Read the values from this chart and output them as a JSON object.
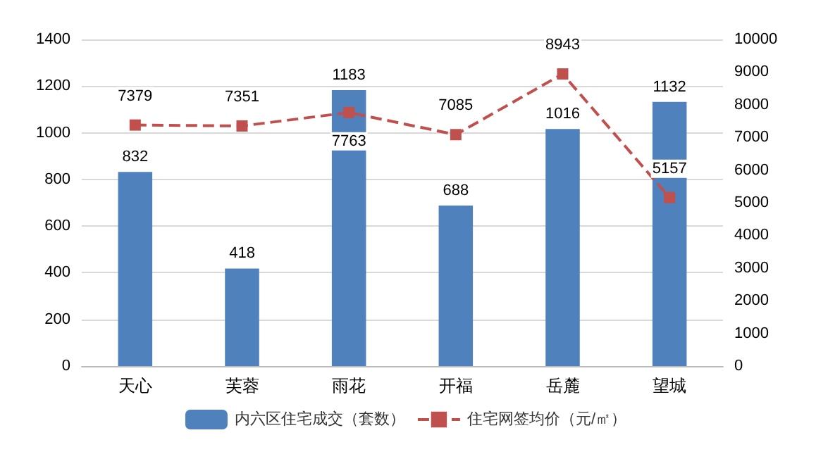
{
  "chart_data": {
    "type": "bar",
    "categories": [
      "天心",
      "芙蓉",
      "雨花",
      "开福",
      "岳麓",
      "望城"
    ],
    "series": [
      {
        "name": "内六区住宅成交（套数）",
        "color": "#4f81bd",
        "values": [
          832,
          418,
          1183,
          688,
          1016,
          1132
        ]
      },
      {
        "name": "住宅网签均价（元/㎡）",
        "type": "line",
        "axis": "y2",
        "color": "#c0504d",
        "values": [
          7379,
          7351,
          7763,
          7085,
          8943,
          5157
        ],
        "marker": "square",
        "line_style": "dashed"
      }
    ],
    "ylim": [
      0,
      1400
    ],
    "yticks": [
      0,
      200,
      400,
      600,
      800,
      1000,
      1200,
      1400
    ],
    "y2lim": [
      0,
      10000
    ],
    "y2ticks": [
      0,
      1000,
      2000,
      3000,
      4000,
      5000,
      6000,
      7000,
      8000,
      9000,
      10000
    ],
    "grid": "y",
    "legend": "bottom",
    "data_labels": true
  }
}
